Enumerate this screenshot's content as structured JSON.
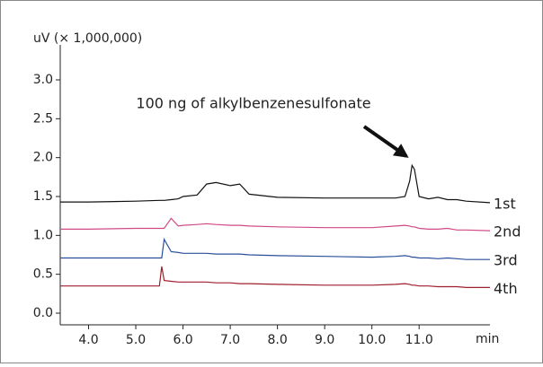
{
  "chart_data": {
    "type": "line",
    "y_label": "uV (× 1,000,000)",
    "x_label": "min",
    "annotation": "100 ng of alkylbenzenesulfonate",
    "xlim": [
      3.4,
      12.5
    ],
    "ylim": [
      -0.15,
      3.45
    ],
    "xticks": [
      {
        "value": 4,
        "label": "4.0"
      },
      {
        "value": 5,
        "label": "5.0"
      },
      {
        "value": 6,
        "label": "6.0"
      },
      {
        "value": 7,
        "label": "7.0"
      },
      {
        "value": 8,
        "label": "8.0"
      },
      {
        "value": 9,
        "label": "9.0"
      },
      {
        "value": 10,
        "label": "10.0"
      },
      {
        "value": 11,
        "label": "11.0"
      }
    ],
    "yticks": [
      {
        "value": 0,
        "label": "0.0"
      },
      0.5,
      {
        "value": 1,
        "label": "1.0"
      },
      1.5,
      {
        "value": 2,
        "label": "2.0"
      },
      2.5,
      {
        "value": 3,
        "label": "3.0"
      }
    ],
    "x": [
      3.4,
      4.0,
      5.0,
      5.5,
      5.55,
      5.6,
      5.75,
      5.9,
      6.0,
      6.3,
      6.5,
      6.7,
      7.0,
      7.2,
      7.4,
      8.0,
      9.0,
      10.0,
      10.5,
      10.7,
      10.8,
      10.85,
      10.9,
      11.0,
      11.2,
      11.4,
      11.6,
      11.8,
      12.0,
      12.5
    ],
    "series": [
      {
        "name": "1st",
        "color": "#111111",
        "values": [
          1.43,
          1.43,
          1.44,
          1.45,
          1.45,
          1.45,
          1.46,
          1.47,
          1.5,
          1.52,
          1.66,
          1.68,
          1.64,
          1.66,
          1.53,
          1.49,
          1.48,
          1.48,
          1.48,
          1.5,
          1.7,
          1.9,
          1.85,
          1.5,
          1.47,
          1.49,
          1.46,
          1.46,
          1.44,
          1.42
        ]
      },
      {
        "name": "2nd",
        "color": "#d04a86",
        "values": [
          1.08,
          1.08,
          1.09,
          1.09,
          1.09,
          1.09,
          1.22,
          1.12,
          1.13,
          1.14,
          1.15,
          1.14,
          1.13,
          1.13,
          1.12,
          1.11,
          1.1,
          1.1,
          1.12,
          1.13,
          1.12,
          1.11,
          1.11,
          1.09,
          1.08,
          1.08,
          1.09,
          1.07,
          1.07,
          1.06
        ]
      },
      {
        "name": "3rd",
        "color": "#2a4f9a",
        "values": [
          0.71,
          0.71,
          0.71,
          0.71,
          0.71,
          0.95,
          0.79,
          0.78,
          0.77,
          0.77,
          0.77,
          0.76,
          0.76,
          0.76,
          0.75,
          0.74,
          0.73,
          0.72,
          0.73,
          0.74,
          0.73,
          0.72,
          0.72,
          0.71,
          0.71,
          0.7,
          0.71,
          0.7,
          0.69,
          0.69
        ]
      },
      {
        "name": "4th",
        "color": "#9e1f2b",
        "values": [
          0.35,
          0.35,
          0.35,
          0.35,
          0.6,
          0.42,
          0.41,
          0.4,
          0.4,
          0.4,
          0.4,
          0.39,
          0.39,
          0.38,
          0.38,
          0.37,
          0.36,
          0.36,
          0.37,
          0.38,
          0.37,
          0.36,
          0.36,
          0.35,
          0.35,
          0.34,
          0.34,
          0.34,
          0.33,
          0.33
        ]
      }
    ]
  }
}
